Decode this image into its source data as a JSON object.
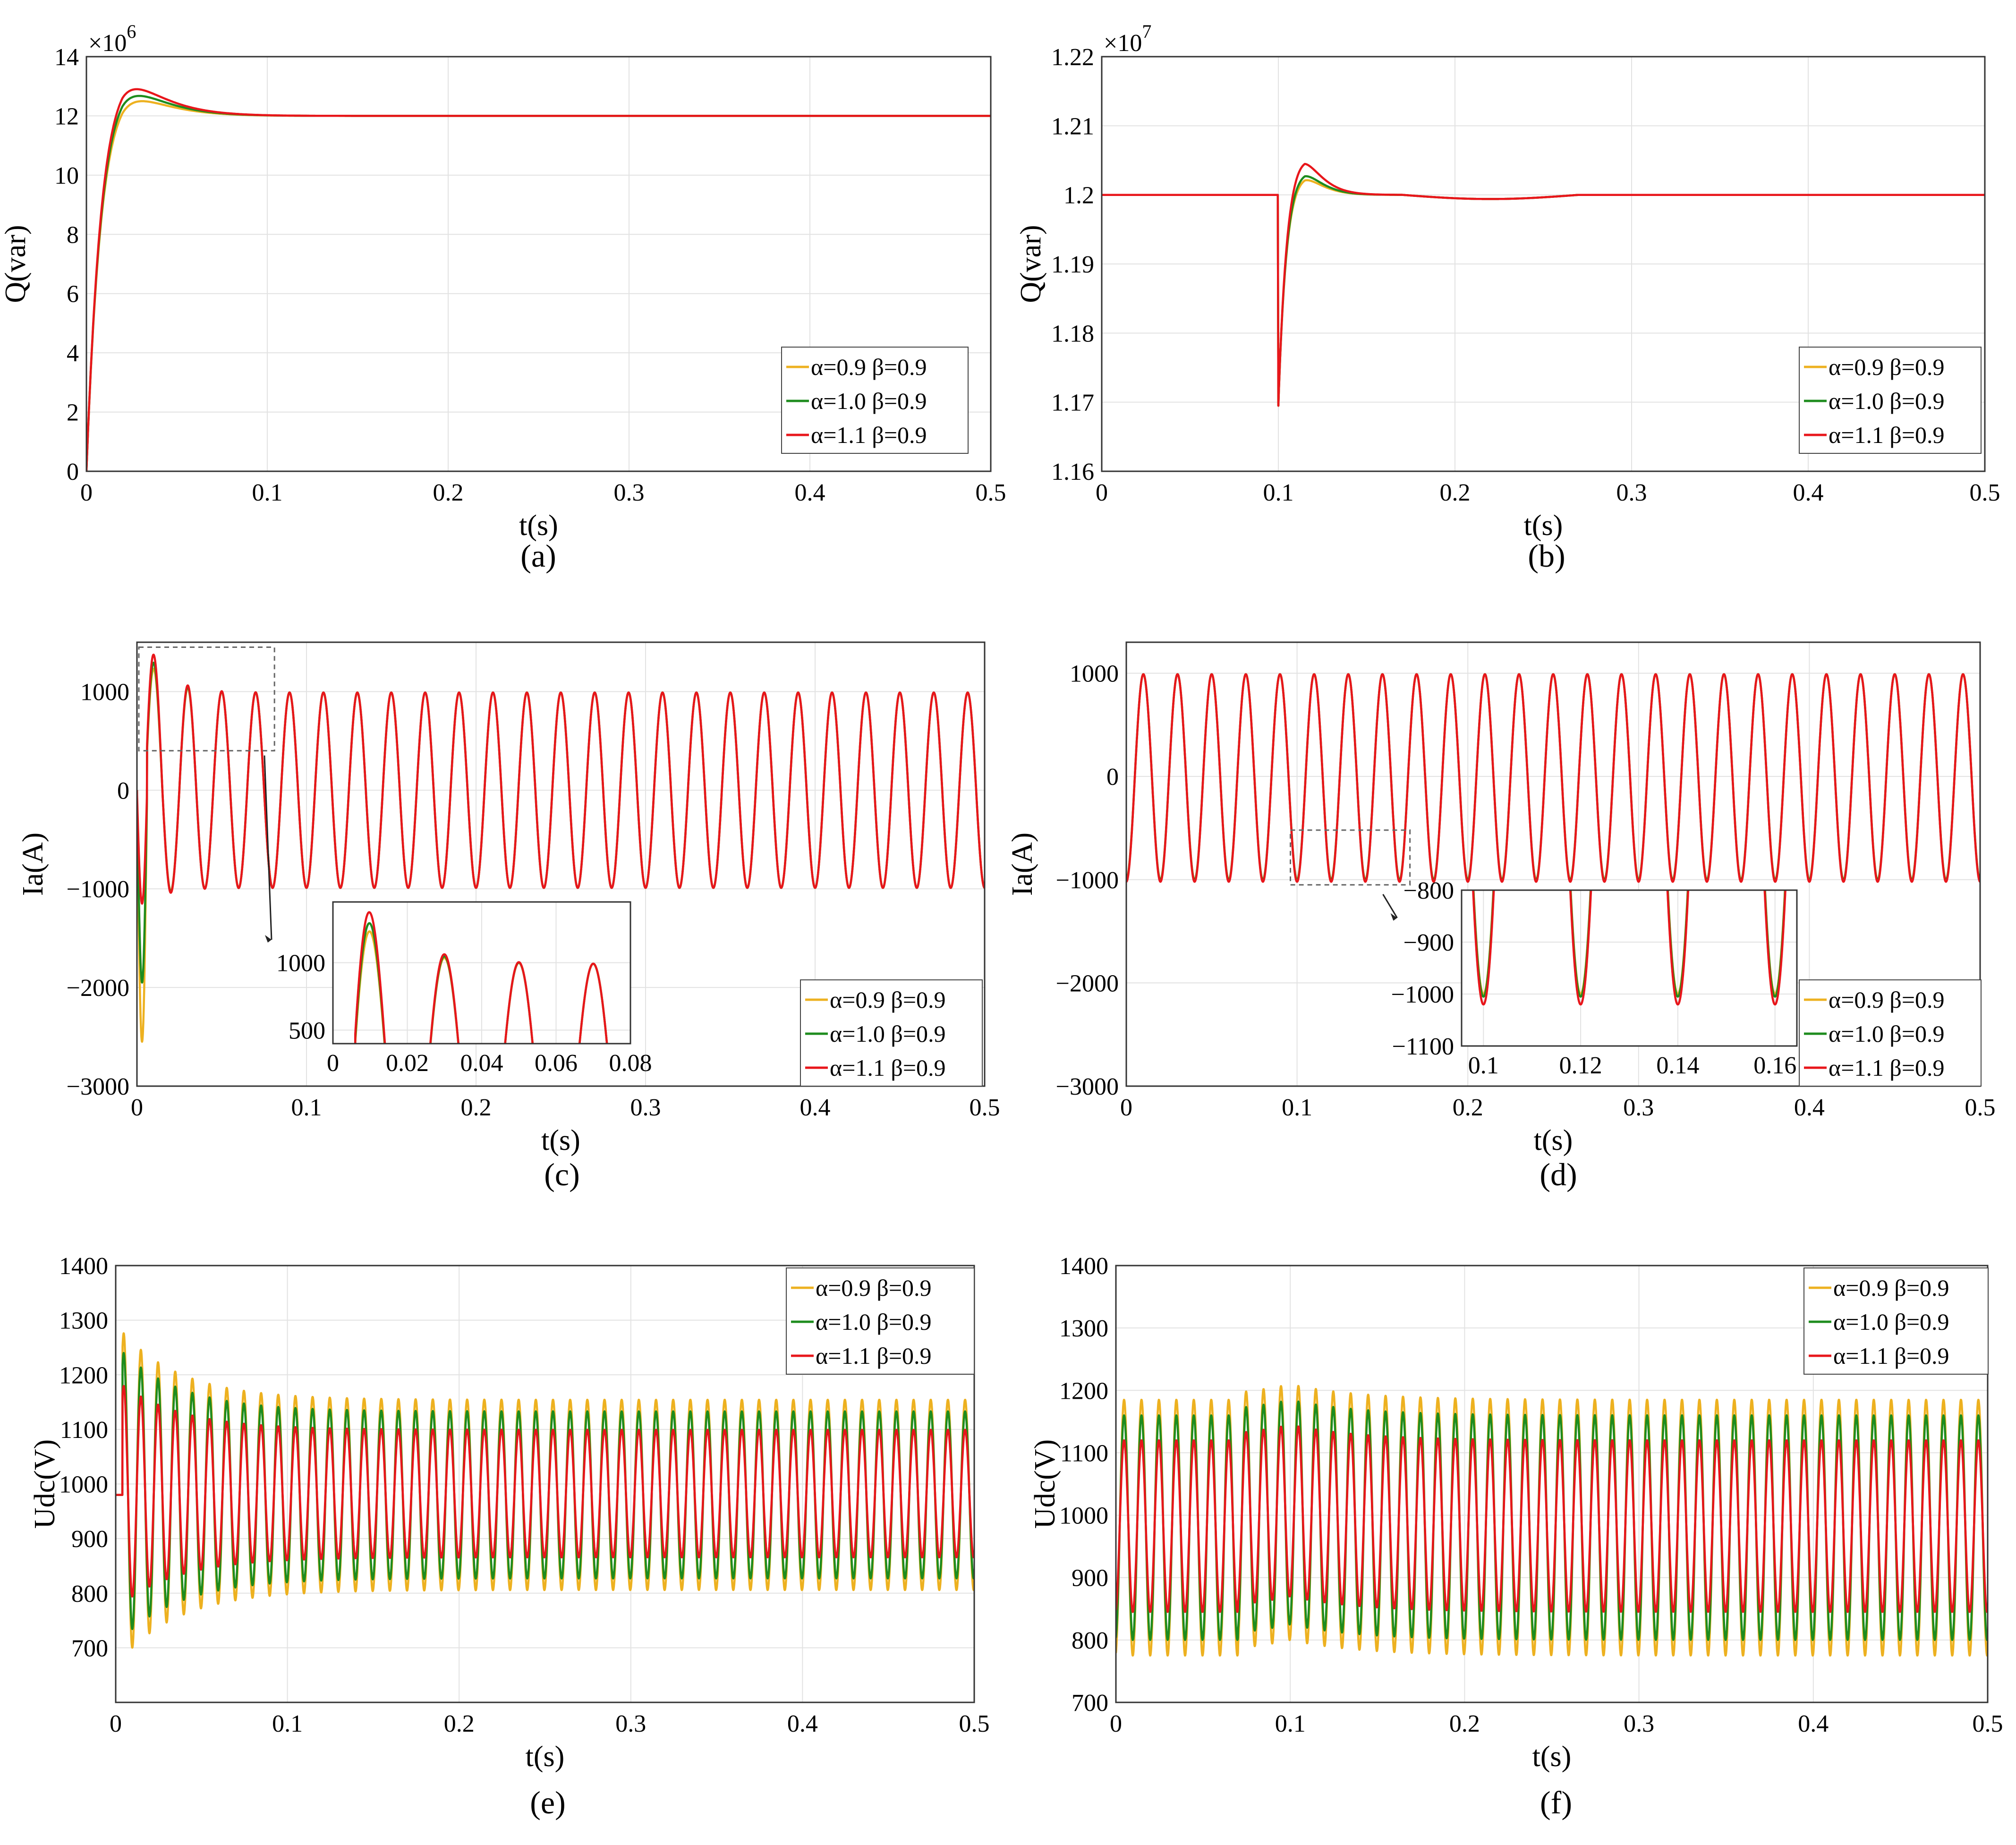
{
  "colors": {
    "a09": "#EDB120",
    "a10": "#1E8C1E",
    "a11": "#E8161B"
  },
  "legend": [
    "α=0.9 β=0.9",
    "α=1.0 β=0.9",
    "α=1.1 β=0.9"
  ],
  "chart_data": [
    {
      "id": "a",
      "caption": "(a)",
      "type": "line",
      "xlabel": "t(s)",
      "ylabel": "Q(var)",
      "exponent": "×10",
      "exponent_power": "6",
      "xlim": [
        0,
        0.5
      ],
      "ylim": [
        0,
        14
      ],
      "xticks": [
        0,
        0.1,
        0.2,
        0.3,
        0.4,
        0.5
      ],
      "xtick_labels": [
        "0",
        "0.1",
        "0.2",
        "0.3",
        "0.4",
        "0.5"
      ],
      "yticks": [
        0,
        2,
        4,
        6,
        8,
        10,
        12,
        14
      ],
      "ytick_labels": [
        "0",
        "2",
        "4",
        "6",
        "8",
        "10",
        "12",
        "14"
      ],
      "legend_position": "bottom-right",
      "model": {
        "kind": "step",
        "final": 12,
        "rise_tau": 0.0075,
        "overshoot": [
          1.0,
          1.25,
          1.6
        ],
        "ot1": 0.02,
        "ot2": 0.045,
        "t0": 0,
        "dip": 0,
        "dip_tau": 0.002
      },
      "series": [
        {
          "name": "α=0.9 β=0.9",
          "peak": 13.0,
          "final": 12
        },
        {
          "name": "α=1.0 β=0.9",
          "peak": 13.25,
          "final": 12
        },
        {
          "name": "α=1.1 β=0.9",
          "peak": 13.55,
          "final": 12
        }
      ]
    },
    {
      "id": "b",
      "caption": "(b)",
      "type": "line",
      "xlabel": "t(s)",
      "ylabel": "Q(var)",
      "exponent": "×10",
      "exponent_power": "7",
      "xlim": [
        0,
        0.5
      ],
      "ylim": [
        1.16,
        1.22
      ],
      "xticks": [
        0,
        0.1,
        0.2,
        0.3,
        0.4,
        0.5
      ],
      "xtick_labels": [
        "0",
        "0.1",
        "0.2",
        "0.3",
        "0.4",
        "0.5"
      ],
      "yticks": [
        1.16,
        1.17,
        1.18,
        1.19,
        1.2,
        1.21,
        1.22
      ],
      "ytick_labels": [
        "1.16",
        "1.17",
        "1.18",
        "1.19",
        "1.2",
        "1.21",
        "1.22"
      ],
      "legend_position": "bottom-right",
      "model": {
        "kind": "disturb",
        "final": 1.2,
        "t0": 0.1,
        "min": 1.1695,
        "dip_tau": 0.004,
        "ot1": 0.015,
        "ot2": 0.025
      },
      "series": [
        {
          "name": "α=0.9 β=0.9",
          "peak": 1.2028
        },
        {
          "name": "α=1.0 β=0.9",
          "peak": 1.2034
        },
        {
          "name": "α=1.1 β=0.9",
          "peak": 1.2052
        }
      ]
    },
    {
      "id": "c",
      "caption": "(c)",
      "type": "line",
      "xlabel": "t(s)",
      "ylabel": "Ia(A)",
      "xlim": [
        0,
        0.5
      ],
      "ylim": [
        -3000,
        1500
      ],
      "xticks": [
        0,
        0.1,
        0.2,
        0.3,
        0.4,
        0.5
      ],
      "xtick_labels": [
        "0",
        "0.1",
        "0.2",
        "0.3",
        "0.4",
        "0.5"
      ],
      "yticks": [
        -3000,
        -2000,
        -1000,
        0,
        1000
      ],
      "ytick_labels": [
        "−3000",
        "−2000",
        "−1000",
        "0",
        "1000"
      ],
      "legend_position": "bottom-right",
      "model": {
        "kind": "sine",
        "amp": 990,
        "freq": 50,
        "phase_deg": -90
      },
      "series": [
        {
          "name": "α=0.9 β=0.9",
          "first_peak": 1230,
          "first_trough": -2550
        },
        {
          "name": "α=1.0 β=0.9",
          "first_peak": 1290,
          "first_trough": -1950
        },
        {
          "name": "α=1.1 β=0.9",
          "first_peak": 1370,
          "first_trough": -1150
        }
      ],
      "inset": {
        "xlim": [
          0,
          0.08
        ],
        "ylim": [
          400,
          1450
        ],
        "xticks": [
          0,
          0.02,
          0.04,
          0.06,
          0.08
        ],
        "xtick_labels": [
          "0",
          "0.02",
          "0.04",
          "0.06",
          "0.08"
        ],
        "yticks": [
          500,
          1000
        ],
        "ytick_labels": [
          "500",
          "1000"
        ],
        "source_xlim": [
          0,
          0.08
        ],
        "source_ylim": [
          400,
          1450
        ]
      }
    },
    {
      "id": "d",
      "caption": "(d)",
      "type": "line",
      "xlabel": "t(s)",
      "ylabel": "Ia(A)",
      "xlim": [
        0,
        0.5
      ],
      "ylim": [
        -3000,
        1300
      ],
      "xticks": [
        0,
        0.1,
        0.2,
        0.3,
        0.4,
        0.5
      ],
      "xtick_labels": [
        "0",
        "0.1",
        "0.2",
        "0.3",
        "0.4",
        "0.5"
      ],
      "yticks": [
        -3000,
        -2000,
        -1000,
        0,
        1000
      ],
      "ytick_labels": [
        "−3000",
        "−2000",
        "−1000",
        "0",
        "1000"
      ],
      "legend_position": "bottom-right",
      "model": {
        "kind": "sine",
        "amp": 990,
        "freq": 50,
        "phase_deg": -90
      },
      "series": [
        {
          "name": "α=0.9 β=0.9",
          "trough_0.1": -1000
        },
        {
          "name": "α=1.0 β=0.9",
          "trough_0.1": -1005
        },
        {
          "name": "α=1.1 β=0.9",
          "trough_0.1": -1020
        }
      ],
      "inset": {
        "xlim": [
          0.0955,
          0.1645
        ],
        "ylim": [
          -1100,
          -800
        ],
        "xticks": [
          0.1,
          0.12,
          0.14,
          0.16
        ],
        "xtick_labels": [
          "0.1",
          "0.12",
          "0.14",
          "0.16"
        ],
        "yticks": [
          -1100,
          -1000,
          -900,
          -800
        ],
        "ytick_labels": [
          "−1100",
          "−1000",
          "−900",
          "−800"
        ],
        "source_xlim": [
          0.095,
          0.165
        ],
        "source_ylim": [
          -1050,
          -520
        ]
      }
    },
    {
      "id": "e",
      "caption": "(e)",
      "type": "line",
      "xlabel": "t(s)",
      "ylabel": "Udc(V)",
      "xlim": [
        0,
        0.5
      ],
      "ylim": [
        600,
        1400
      ],
      "xticks": [
        0,
        0.1,
        0.2,
        0.3,
        0.4,
        0.5
      ],
      "xtick_labels": [
        "0",
        "0.1",
        "0.2",
        "0.3",
        "0.4",
        "0.5"
      ],
      "yticks": [
        700,
        800,
        900,
        1000,
        1100,
        1200,
        1300,
        1400
      ],
      "ytick_labels": [
        "700",
        "800",
        "900",
        "1000",
        "1100",
        "1200",
        "1300",
        "1400"
      ],
      "legend_position": "top-right",
      "model": {
        "kind": "ripple",
        "freq": 100,
        "center": 980,
        "start": 0.004
      },
      "series": [
        {
          "name": "α=0.9 β=0.9",
          "max": 1185,
          "min": 775,
          "first_peak": 1300,
          "first_trough": 705
        },
        {
          "name": "α=1.0 β=0.9",
          "max": 1160,
          "min": 800,
          "first_peak": 1260,
          "first_trough": 760
        },
        {
          "name": "α=1.1 β=0.9",
          "max": 1120,
          "min": 845,
          "first_peak": 1170,
          "first_trough": 840
        }
      ]
    },
    {
      "id": "f",
      "caption": "(f)",
      "type": "line",
      "xlabel": "t(s)",
      "ylabel": "Udc(V)",
      "xlim": [
        0,
        0.5
      ],
      "ylim": [
        700,
        1400
      ],
      "xticks": [
        0,
        0.1,
        0.2,
        0.3,
        0.4,
        0.5
      ],
      "xtick_labels": [
        "0",
        "0.1",
        "0.2",
        "0.3",
        "0.4",
        "0.5"
      ],
      "yticks": [
        700,
        800,
        900,
        1000,
        1100,
        1200,
        1300,
        1400
      ],
      "ytick_labels": [
        "700",
        "800",
        "900",
        "1000",
        "1100",
        "1200",
        "1300",
        "1400"
      ],
      "legend_position": "top-right",
      "model": {
        "kind": "ripple_steady",
        "freq": 100,
        "disturb_t": 0.1,
        "disturb_amp": 25
      },
      "series": [
        {
          "name": "α=0.9 β=0.9",
          "max": 1185,
          "min": 775
        },
        {
          "name": "α=1.0 β=0.9",
          "max": 1160,
          "min": 800
        },
        {
          "name": "α=1.1 β=0.9",
          "max": 1120,
          "min": 845
        }
      ]
    }
  ]
}
